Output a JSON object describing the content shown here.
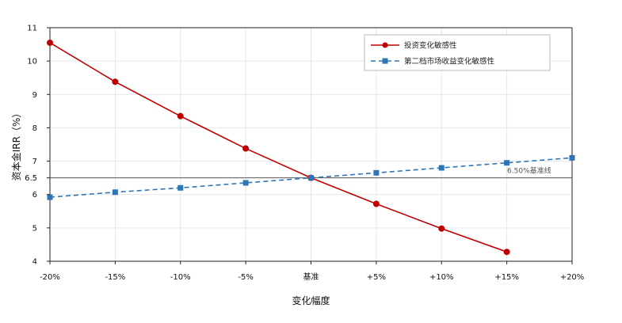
{
  "chart_data": {
    "type": "line",
    "categories": [
      "-20%",
      "-15%",
      "-10%",
      "-5%",
      "基准",
      "+5%",
      "+10%",
      "+15%",
      "+20%"
    ],
    "xlabel": "变化幅度",
    "ylabel": "资本金IRR（%）",
    "ylim": [
      4,
      11
    ],
    "yticks": [
      4,
      5,
      6,
      6.5,
      7,
      8,
      9,
      10,
      11
    ],
    "grid": true,
    "legend_position": "top-right",
    "series": [
      {
        "name": "投资变化敏感性",
        "color": "#c00000",
        "marker": "circle",
        "line_style": "solid",
        "values": [
          10.55,
          9.38,
          8.35,
          7.38,
          6.5,
          5.72,
          4.98,
          4.28,
          null
        ]
      },
      {
        "name": "第二档市场收益变化敏感性",
        "color": "#2e75b6",
        "marker": "square",
        "line_style": "dashed",
        "values": [
          5.92,
          6.07,
          6.2,
          6.35,
          6.5,
          6.65,
          6.8,
          6.95,
          7.1
        ]
      }
    ],
    "reference_line": {
      "value": 6.5,
      "label": "6.50%基准线",
      "color": "#555555"
    }
  }
}
